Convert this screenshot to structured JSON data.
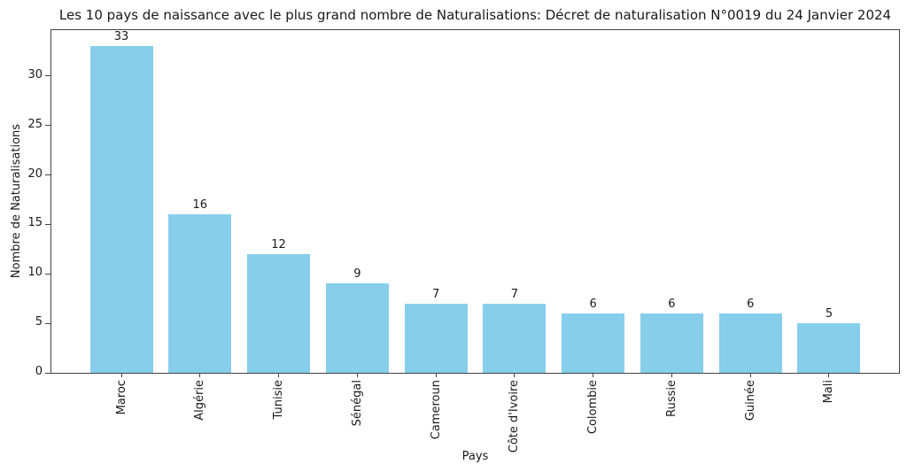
{
  "chart_data": {
    "type": "bar",
    "title": "Les 10 pays de naissance avec le plus grand nombre de Naturalisations: Décret de naturalisation N°0019 du 24 Janvier 2024",
    "xlabel": "Pays",
    "ylabel": "Nombre de Naturalisations",
    "categories": [
      "Maroc",
      "Algérie",
      "Tunisie",
      "Sénégal",
      "Cameroun",
      "Côte d'Ivoire",
      "Colombie",
      "Russie",
      "Guinée",
      "Mali"
    ],
    "values": [
      33,
      16,
      12,
      9,
      7,
      7,
      6,
      6,
      6,
      5
    ],
    "yticks": [
      0,
      5,
      10,
      15,
      20,
      25,
      30
    ],
    "ylim": [
      0,
      34.65
    ],
    "bar_color": "#87CEEB",
    "spine_color": "#444444",
    "text_color": "#1a1a1a",
    "grid": false,
    "legend": null,
    "value_labels_shown": true,
    "x_tick_rotation_deg": 90
  }
}
